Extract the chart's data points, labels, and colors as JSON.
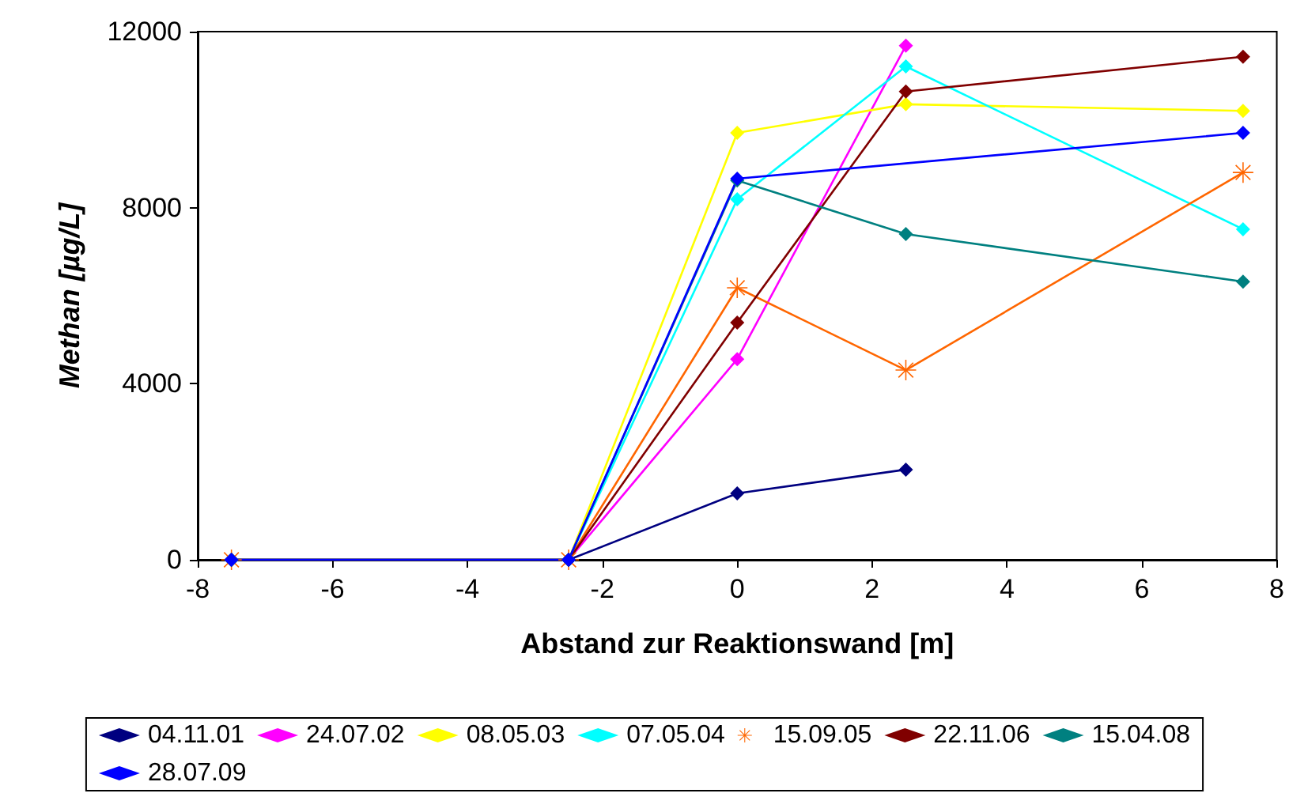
{
  "chart_data": {
    "type": "line",
    "xlabel": "Abstand zur Reaktionswand [m]",
    "ylabel": "Methan [µg/L]",
    "x": [
      -7.5,
      -2.5,
      0,
      2.5,
      7.5
    ],
    "xlim": [
      -8,
      8
    ],
    "xticks": [
      -8,
      -6,
      -4,
      -2,
      0,
      2,
      4,
      6,
      8
    ],
    "ylim": [
      0,
      12000
    ],
    "yticks": [
      0,
      4000,
      8000,
      12000
    ],
    "grid": false,
    "legend": "bottom",
    "marker": "diamond",
    "line_style": "solid",
    "series": [
      {
        "name": "04.11.01",
        "color": "#000080",
        "values": [
          0,
          0,
          1510,
          2050,
          null
        ]
      },
      {
        "name": "24.07.02",
        "color": "#ff00ff",
        "values": [
          0,
          0,
          4560,
          11680,
          null
        ]
      },
      {
        "name": "08.05.03",
        "color": "#ffff00",
        "values": [
          0,
          0,
          9700,
          10350,
          10200
        ]
      },
      {
        "name": "07.05.04",
        "color": "#00ffff",
        "values": [
          0,
          0,
          8190,
          11210,
          7510
        ]
      },
      {
        "name": "15.09.05",
        "color": "#ff6600",
        "marker": "cross",
        "values": [
          0,
          0,
          6180,
          4310,
          8800
        ]
      },
      {
        "name": "22.11.06",
        "color": "#800000",
        "values": [
          0,
          0,
          5390,
          10640,
          11430
        ]
      },
      {
        "name": "15.04.08",
        "color": "#008080",
        "values": [
          0,
          0,
          8620,
          7400,
          6320
        ]
      },
      {
        "name": "28.07.09",
        "color": "#0000ff",
        "values": [
          0,
          0,
          8660,
          null,
          9700
        ]
      }
    ]
  }
}
